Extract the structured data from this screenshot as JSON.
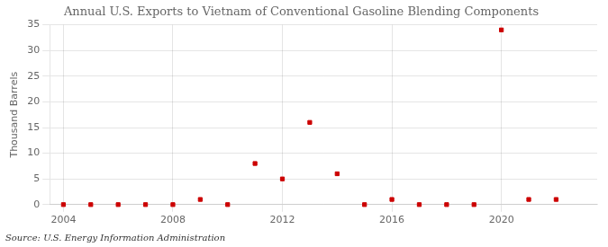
{
  "chart_data": {
    "type": "scatter",
    "title": "Annual U.S. Exports to Vietnam of Conventional Gasoline Blending Components",
    "ylabel": "Thousand Barrels",
    "annotations": [
      "Source: U.S. Energy Information Administration"
    ],
    "x": [
      2004,
      2005,
      2006,
      2007,
      2008,
      2009,
      2010,
      2011,
      2012,
      2013,
      2014,
      2015,
      2016,
      2017,
      2018,
      2019,
      2020,
      2021,
      2022
    ],
    "values": [
      0,
      0,
      0,
      0,
      0,
      1,
      0,
      8,
      5,
      16,
      6,
      0,
      1,
      0,
      0,
      0,
      34,
      1,
      1
    ],
    "color": "#cc0000",
    "marker": "square",
    "xlim": [
      2003.5,
      2023.5
    ],
    "xticks": [
      2004,
      2008,
      2012,
      2016,
      2020
    ],
    "ylim": [
      0,
      35
    ],
    "yticks": [
      0,
      5,
      10,
      15,
      20,
      25,
      30,
      35
    ],
    "grid": true
  }
}
